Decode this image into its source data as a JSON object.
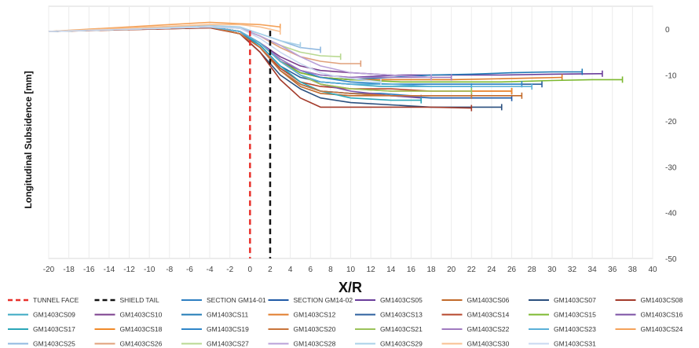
{
  "chart_data": {
    "type": "line",
    "title": "",
    "xlabel": "X/R",
    "ylabel": "Longitudinal Subsidence [mm]",
    "xlim": [
      -20,
      40
    ],
    "ylim": [
      -50,
      5
    ],
    "x_ticks": [
      "-20",
      "-18",
      "-16",
      "-14",
      "-12",
      "-10",
      "-8",
      "-6",
      "-4",
      "-2",
      "0",
      "2",
      "4",
      "6",
      "8",
      "10",
      "12",
      "14",
      "16",
      "18",
      "20",
      "22",
      "24",
      "26",
      "28",
      "30",
      "32",
      "34",
      "36",
      "38",
      "40"
    ],
    "y_ticks": [
      "0",
      "-10",
      "-20",
      "-30",
      "-40",
      "-50"
    ],
    "y_axis_side": "right",
    "grid": "vertical",
    "legend_position": "bottom",
    "reference_lines": [
      {
        "name": "TUNNEL FACE",
        "x": 0,
        "color": "#e8302a",
        "style": "dashed"
      },
      {
        "name": "SHIELD TAIL",
        "x": 2,
        "color": "#111111",
        "style": "dashed"
      }
    ],
    "series": [
      {
        "name": "SECTION GM14-01",
        "color": "#2e7fc2",
        "x": [
          -20,
          -4,
          -1,
          1,
          3,
          5,
          7,
          10,
          13,
          16,
          19,
          22
        ],
        "y": [
          -0.5,
          0.5,
          -0.5,
          -4,
          -9,
          -12,
          -13.5,
          -14,
          -14,
          -14.5,
          -14.5,
          -14.5
        ]
      },
      {
        "name": "SECTION GM14-02",
        "color": "#1f5aa6",
        "x": [
          -20,
          -4,
          -1,
          1,
          3,
          5,
          7,
          10,
          14,
          18,
          22,
          26
        ],
        "y": [
          -0.5,
          0.5,
          -1,
          -4,
          -9,
          -12,
          -13.5,
          -14,
          -14.5,
          -15,
          -15,
          -15
        ]
      },
      {
        "name": "GM1403CS05",
        "color": "#6a3d9a",
        "x": [
          -20,
          -4,
          -1,
          1,
          3,
          5,
          7,
          10,
          15,
          20,
          25,
          30,
          35
        ],
        "y": [
          -0.5,
          0.5,
          -0.5,
          -3,
          -7,
          -9,
          -10,
          -10.5,
          -10,
          -10,
          -10,
          -9.8,
          -9.7
        ]
      },
      {
        "name": "GM1403CS06",
        "color": "#c26a2a",
        "x": [
          -20,
          -4,
          -1,
          1,
          3,
          5,
          7,
          10,
          14,
          18,
          22,
          27
        ],
        "y": [
          -0.5,
          0.3,
          -1,
          -4,
          -9,
          -12.5,
          -14,
          -14.5,
          -14.5,
          -14.5,
          -14.5,
          -14.5
        ]
      },
      {
        "name": "GM1403CS07",
        "color": "#2a4f7e",
        "x": [
          -20,
          -4,
          -1,
          1,
          3,
          5,
          7,
          10,
          14,
          18,
          22,
          25
        ],
        "y": [
          -0.5,
          0.5,
          -1,
          -5,
          -10,
          -13,
          -15,
          -16,
          -16.5,
          -17,
          -17,
          -17
        ]
      },
      {
        "name": "GM1403CS08",
        "color": "#a33a2a",
        "x": [
          -20,
          -4,
          -1,
          1,
          3,
          5,
          7,
          10,
          14,
          18,
          22
        ],
        "y": [
          -0.5,
          0.3,
          -1,
          -5,
          -11,
          -15,
          -17,
          -17,
          -17,
          -17,
          -17.2
        ]
      },
      {
        "name": "GM1403CS09",
        "color": "#3aa8c2",
        "x": [
          -20,
          -4,
          -1,
          1,
          3,
          5,
          7,
          10,
          13,
          16,
          19,
          22
        ],
        "y": [
          -0.5,
          0.5,
          -0.5,
          -3,
          -7,
          -10,
          -11.5,
          -12,
          -12.5,
          -12.5,
          -12.5,
          -12.5
        ]
      },
      {
        "name": "GM1403CS10",
        "color": "#7a3d8c",
        "x": [
          -20,
          -4,
          -1,
          1,
          3,
          5,
          7,
          10,
          14,
          18
        ],
        "y": [
          -0.5,
          0.5,
          -0.5,
          -3,
          -6,
          -8,
          -9,
          -9.5,
          -10,
          -10.5
        ]
      },
      {
        "name": "GM1403CS11",
        "color": "#1f7ab5",
        "x": [
          -20,
          -4,
          -1,
          1,
          3,
          5,
          7,
          10,
          14,
          18,
          22,
          26,
          30,
          33
        ],
        "y": [
          -0.5,
          0.5,
          -0.5,
          -3,
          -7,
          -9.5,
          -10.5,
          -11,
          -10.5,
          -10,
          -9.8,
          -9.5,
          -9.3,
          -9.3
        ]
      },
      {
        "name": "GM1403CS12",
        "color": "#e07b2a",
        "x": [
          -20,
          -4,
          -1,
          1,
          3,
          5,
          7,
          10,
          15,
          20,
          25,
          31
        ],
        "y": [
          -0.5,
          0.5,
          -0.5,
          -3,
          -7,
          -9.5,
          -10.5,
          -11,
          -11,
          -11,
          -10.8,
          -10.5
        ]
      },
      {
        "name": "GM1403CS13",
        "color": "#2b5f9e",
        "x": [
          -20,
          -4,
          -1,
          1,
          3,
          5,
          7,
          10,
          15,
          20,
          25,
          29
        ],
        "y": [
          -0.5,
          0.5,
          -0.5,
          -3.5,
          -8,
          -10.5,
          -11.5,
          -12,
          -12,
          -12,
          -12,
          -12
        ]
      },
      {
        "name": "GM1403CS14",
        "color": "#b5452a",
        "x": [
          -20,
          -4,
          -1,
          1,
          3,
          5,
          7,
          10,
          14,
          18,
          22,
          26
        ],
        "y": [
          -0.5,
          0.5,
          -1,
          -4,
          -8.5,
          -11.5,
          -12.5,
          -13,
          -13,
          -13.5,
          -13.5,
          -13.5
        ]
      },
      {
        "name": "GM1403CS15",
        "color": "#7cb82f",
        "x": [
          -20,
          -4,
          -1,
          1,
          3,
          5,
          7,
          10,
          15,
          20,
          25,
          30,
          34,
          37
        ],
        "y": [
          -0.5,
          0.5,
          -0.5,
          -3,
          -7,
          -9.5,
          -10.5,
          -11,
          -11.5,
          -11.5,
          -11.5,
          -11.2,
          -11,
          -11
        ]
      },
      {
        "name": "GM1403CS16",
        "color": "#7a4fa3",
        "x": [
          -20,
          -4,
          -1,
          1,
          3,
          5,
          7,
          10,
          14,
          17
        ],
        "y": [
          -0.5,
          0.5,
          -0.5,
          -3,
          -7,
          -10,
          -12,
          -13.5,
          -14.5,
          -15
        ]
      },
      {
        "name": "GM1403CS17",
        "color": "#2ba6b8",
        "x": [
          -20,
          -4,
          -1,
          1,
          3,
          5,
          7,
          10,
          14,
          17
        ],
        "y": [
          -0.5,
          0.5,
          -0.5,
          -3.5,
          -8,
          -11.5,
          -13.5,
          -15,
          -15.5,
          -15.5
        ]
      },
      {
        "name": "GM1403CS18",
        "color": "#f08a2a",
        "x": [
          -20,
          -4,
          -1,
          1,
          3,
          5,
          7,
          10,
          14,
          18,
          22,
          26
        ],
        "y": [
          -0.5,
          0.5,
          -0.5,
          -3,
          -7,
          -10,
          -12,
          -13,
          -13.5,
          -13.5,
          -13.5,
          -13.5
        ]
      },
      {
        "name": "GM1403CS19",
        "color": "#2f86c8",
        "x": [
          -20,
          -4,
          -1,
          1,
          3,
          5,
          7,
          10,
          14,
          18,
          22,
          27
        ],
        "y": [
          -0.5,
          0.5,
          -0.5,
          -3,
          -6.5,
          -9,
          -10.5,
          -11.5,
          -12,
          -12,
          -12,
          -12
        ]
      },
      {
        "name": "GM1403CS20",
        "color": "#c8743a",
        "x": [
          -20,
          -4,
          -1,
          1,
          3,
          5,
          7,
          10,
          14,
          18,
          22
        ],
        "y": [
          -0.5,
          0.5,
          -1,
          -4,
          -9,
          -12,
          -13.5,
          -14,
          -14.5,
          -14.5,
          -14.5
        ]
      },
      {
        "name": "GM1403CS21",
        "color": "#9bc25a",
        "x": [
          -20,
          -4,
          -1,
          1,
          3,
          5,
          7,
          10,
          14,
          18,
          22
        ],
        "y": [
          -0.5,
          0.5,
          -0.5,
          -3,
          -7,
          -10,
          -12,
          -13,
          -13.5,
          -13.5,
          -13.5
        ]
      },
      {
        "name": "GM1403CS22",
        "color": "#a07ac0",
        "x": [
          -20,
          -4,
          -1,
          1,
          3,
          5,
          7,
          10,
          14,
          18,
          20
        ],
        "y": [
          -0.5,
          0.5,
          -0.5,
          -3,
          -6.5,
          -9,
          -10,
          -10.5,
          -10.5,
          -10.5,
          -10.5
        ]
      },
      {
        "name": "GM1403CS23",
        "color": "#5ab0d8",
        "x": [
          -20,
          -4,
          -1,
          1,
          3,
          5,
          7,
          10,
          14,
          18,
          22,
          28
        ],
        "y": [
          -0.5,
          0.5,
          -0.5,
          -3,
          -7,
          -10,
          -11.5,
          -12,
          -12,
          -12.5,
          -12.5,
          -12.5
        ]
      },
      {
        "name": "GM1403CS24",
        "color": "#f4a25a",
        "x": [
          -20,
          -4,
          -1,
          1,
          3
        ],
        "y": [
          -0.5,
          1.5,
          1.2,
          1,
          0.5
        ]
      },
      {
        "name": "GM1403CS25",
        "color": "#8fb8e0",
        "x": [
          -20,
          -4,
          -1,
          1,
          3,
          5,
          7
        ],
        "y": [
          -0.5,
          0.5,
          0.3,
          -1,
          -2.5,
          -4,
          -4.5
        ]
      },
      {
        "name": "GM1403CS26",
        "color": "#e0a07a",
        "x": [
          -20,
          -4,
          -1,
          1,
          3,
          5,
          7,
          9,
          11
        ],
        "y": [
          -0.5,
          0.5,
          0.2,
          -1.5,
          -4,
          -6,
          -7,
          -7.5,
          -7.5
        ]
      },
      {
        "name": "GM1403CS27",
        "color": "#b8d890",
        "x": [
          -20,
          -4,
          -1,
          1,
          3,
          5,
          7,
          9
        ],
        "y": [
          -0.5,
          0.5,
          0.2,
          -1.5,
          -3.5,
          -5,
          -5.8,
          -6
        ]
      },
      {
        "name": "GM1403CS28",
        "color": "#b8a0d8",
        "x": [
          -20,
          -4,
          -1,
          1,
          3,
          5,
          7,
          10,
          14,
          18
        ],
        "y": [
          -0.5,
          0.5,
          0.2,
          -1.5,
          -3.5,
          -6,
          -8,
          -9.5,
          -10,
          -10.5
        ]
      },
      {
        "name": "GM1403CS29",
        "color": "#a8d0e8",
        "x": [
          -20,
          -4,
          -1,
          1,
          3,
          5
        ],
        "y": [
          -0.5,
          0.8,
          0.5,
          -1,
          -2.5,
          -3.5
        ]
      },
      {
        "name": "GM1403CS30",
        "color": "#f8c090",
        "x": [
          -20,
          -4,
          -1,
          1,
          2,
          3
        ],
        "y": [
          -0.5,
          1,
          1,
          0.5,
          0,
          -0.5
        ]
      },
      {
        "name": "GM1403CS31",
        "color": "#c8d8f0",
        "x": [
          -20,
          -4,
          -1,
          1,
          3,
          5,
          7,
          9,
          11,
          13
        ],
        "y": [
          -0.5,
          0.5,
          0.2,
          -2,
          -5,
          -7.5,
          -9.5,
          -10.5,
          -11,
          -11.5
        ]
      }
    ]
  }
}
